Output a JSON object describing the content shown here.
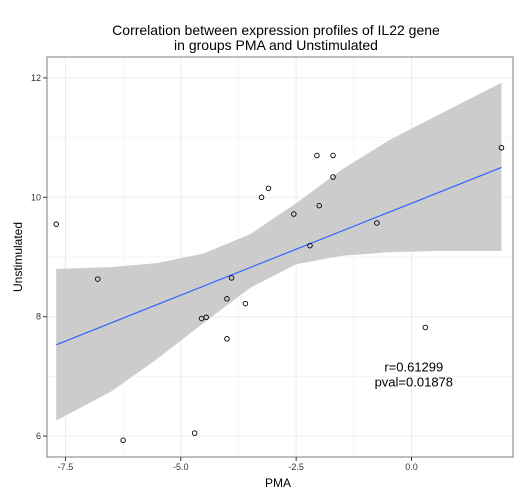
{
  "chart_data": {
    "type": "scatter",
    "title_lines": [
      "Correlation between expression profiles of IL22 gene",
      "in groups PMA and Unstimulated"
    ],
    "xlabel": "PMA",
    "ylabel": "Unstimulated",
    "xlim": [
      -7.9,
      2.2
    ],
    "ylim": [
      5.65,
      12.35
    ],
    "x_ticks": [
      -7.5,
      -5.0,
      -2.5,
      0.0
    ],
    "x_tick_labels": [
      "-7.5",
      "-5.0",
      "-2.5",
      "0.0"
    ],
    "y_ticks": [
      6,
      8,
      10,
      12
    ],
    "y_tick_labels": [
      "6",
      "8",
      "10",
      "12"
    ],
    "grid": true,
    "points": [
      {
        "x": -7.7,
        "y": 9.55
      },
      {
        "x": -6.8,
        "y": 8.63
      },
      {
        "x": -6.25,
        "y": 5.93
      },
      {
        "x": -4.7,
        "y": 6.05
      },
      {
        "x": -4.55,
        "y": 7.97
      },
      {
        "x": -4.45,
        "y": 7.99
      },
      {
        "x": -4.0,
        "y": 8.3
      },
      {
        "x": -4.0,
        "y": 7.63
      },
      {
        "x": -3.9,
        "y": 8.65
      },
      {
        "x": -3.6,
        "y": 8.22
      },
      {
        "x": -3.25,
        "y": 10.0
      },
      {
        "x": -3.1,
        "y": 10.15
      },
      {
        "x": -2.55,
        "y": 9.72
      },
      {
        "x": -2.2,
        "y": 9.19
      },
      {
        "x": -2.05,
        "y": 10.7
      },
      {
        "x": -2.0,
        "y": 9.86
      },
      {
        "x": -1.7,
        "y": 10.7
      },
      {
        "x": -1.7,
        "y": 10.34
      },
      {
        "x": -0.75,
        "y": 9.57
      },
      {
        "x": 0.3,
        "y": 7.82
      },
      {
        "x": 1.95,
        "y": 10.83
      }
    ],
    "fit_line": {
      "x": [
        -7.7,
        1.95
      ],
      "y": [
        7.53,
        10.5
      ],
      "color": "#3366ff"
    },
    "confidence_band": {
      "x": [
        -7.7,
        -6.5,
        -5.5,
        -4.5,
        -3.5,
        -2.5,
        -1.5,
        -0.5,
        0.5,
        1.95
      ],
      "upper": [
        8.8,
        8.83,
        8.9,
        9.06,
        9.38,
        9.9,
        10.47,
        10.95,
        11.35,
        11.92
      ],
      "lower": [
        6.26,
        6.75,
        7.3,
        7.9,
        8.48,
        8.88,
        9.02,
        9.08,
        9.1,
        9.1
      ],
      "color": "#cccccc"
    },
    "annotation_lines": [
      "r=0.61299",
      "pval=0.01878"
    ],
    "annotation_at": {
      "x": 0.05,
      "y": 6.95
    },
    "colors": {
      "panel_background": "#ffffff",
      "grid": "#ebebeb",
      "panel_border": "#7f7f7f",
      "point_stroke": "#000000"
    }
  }
}
